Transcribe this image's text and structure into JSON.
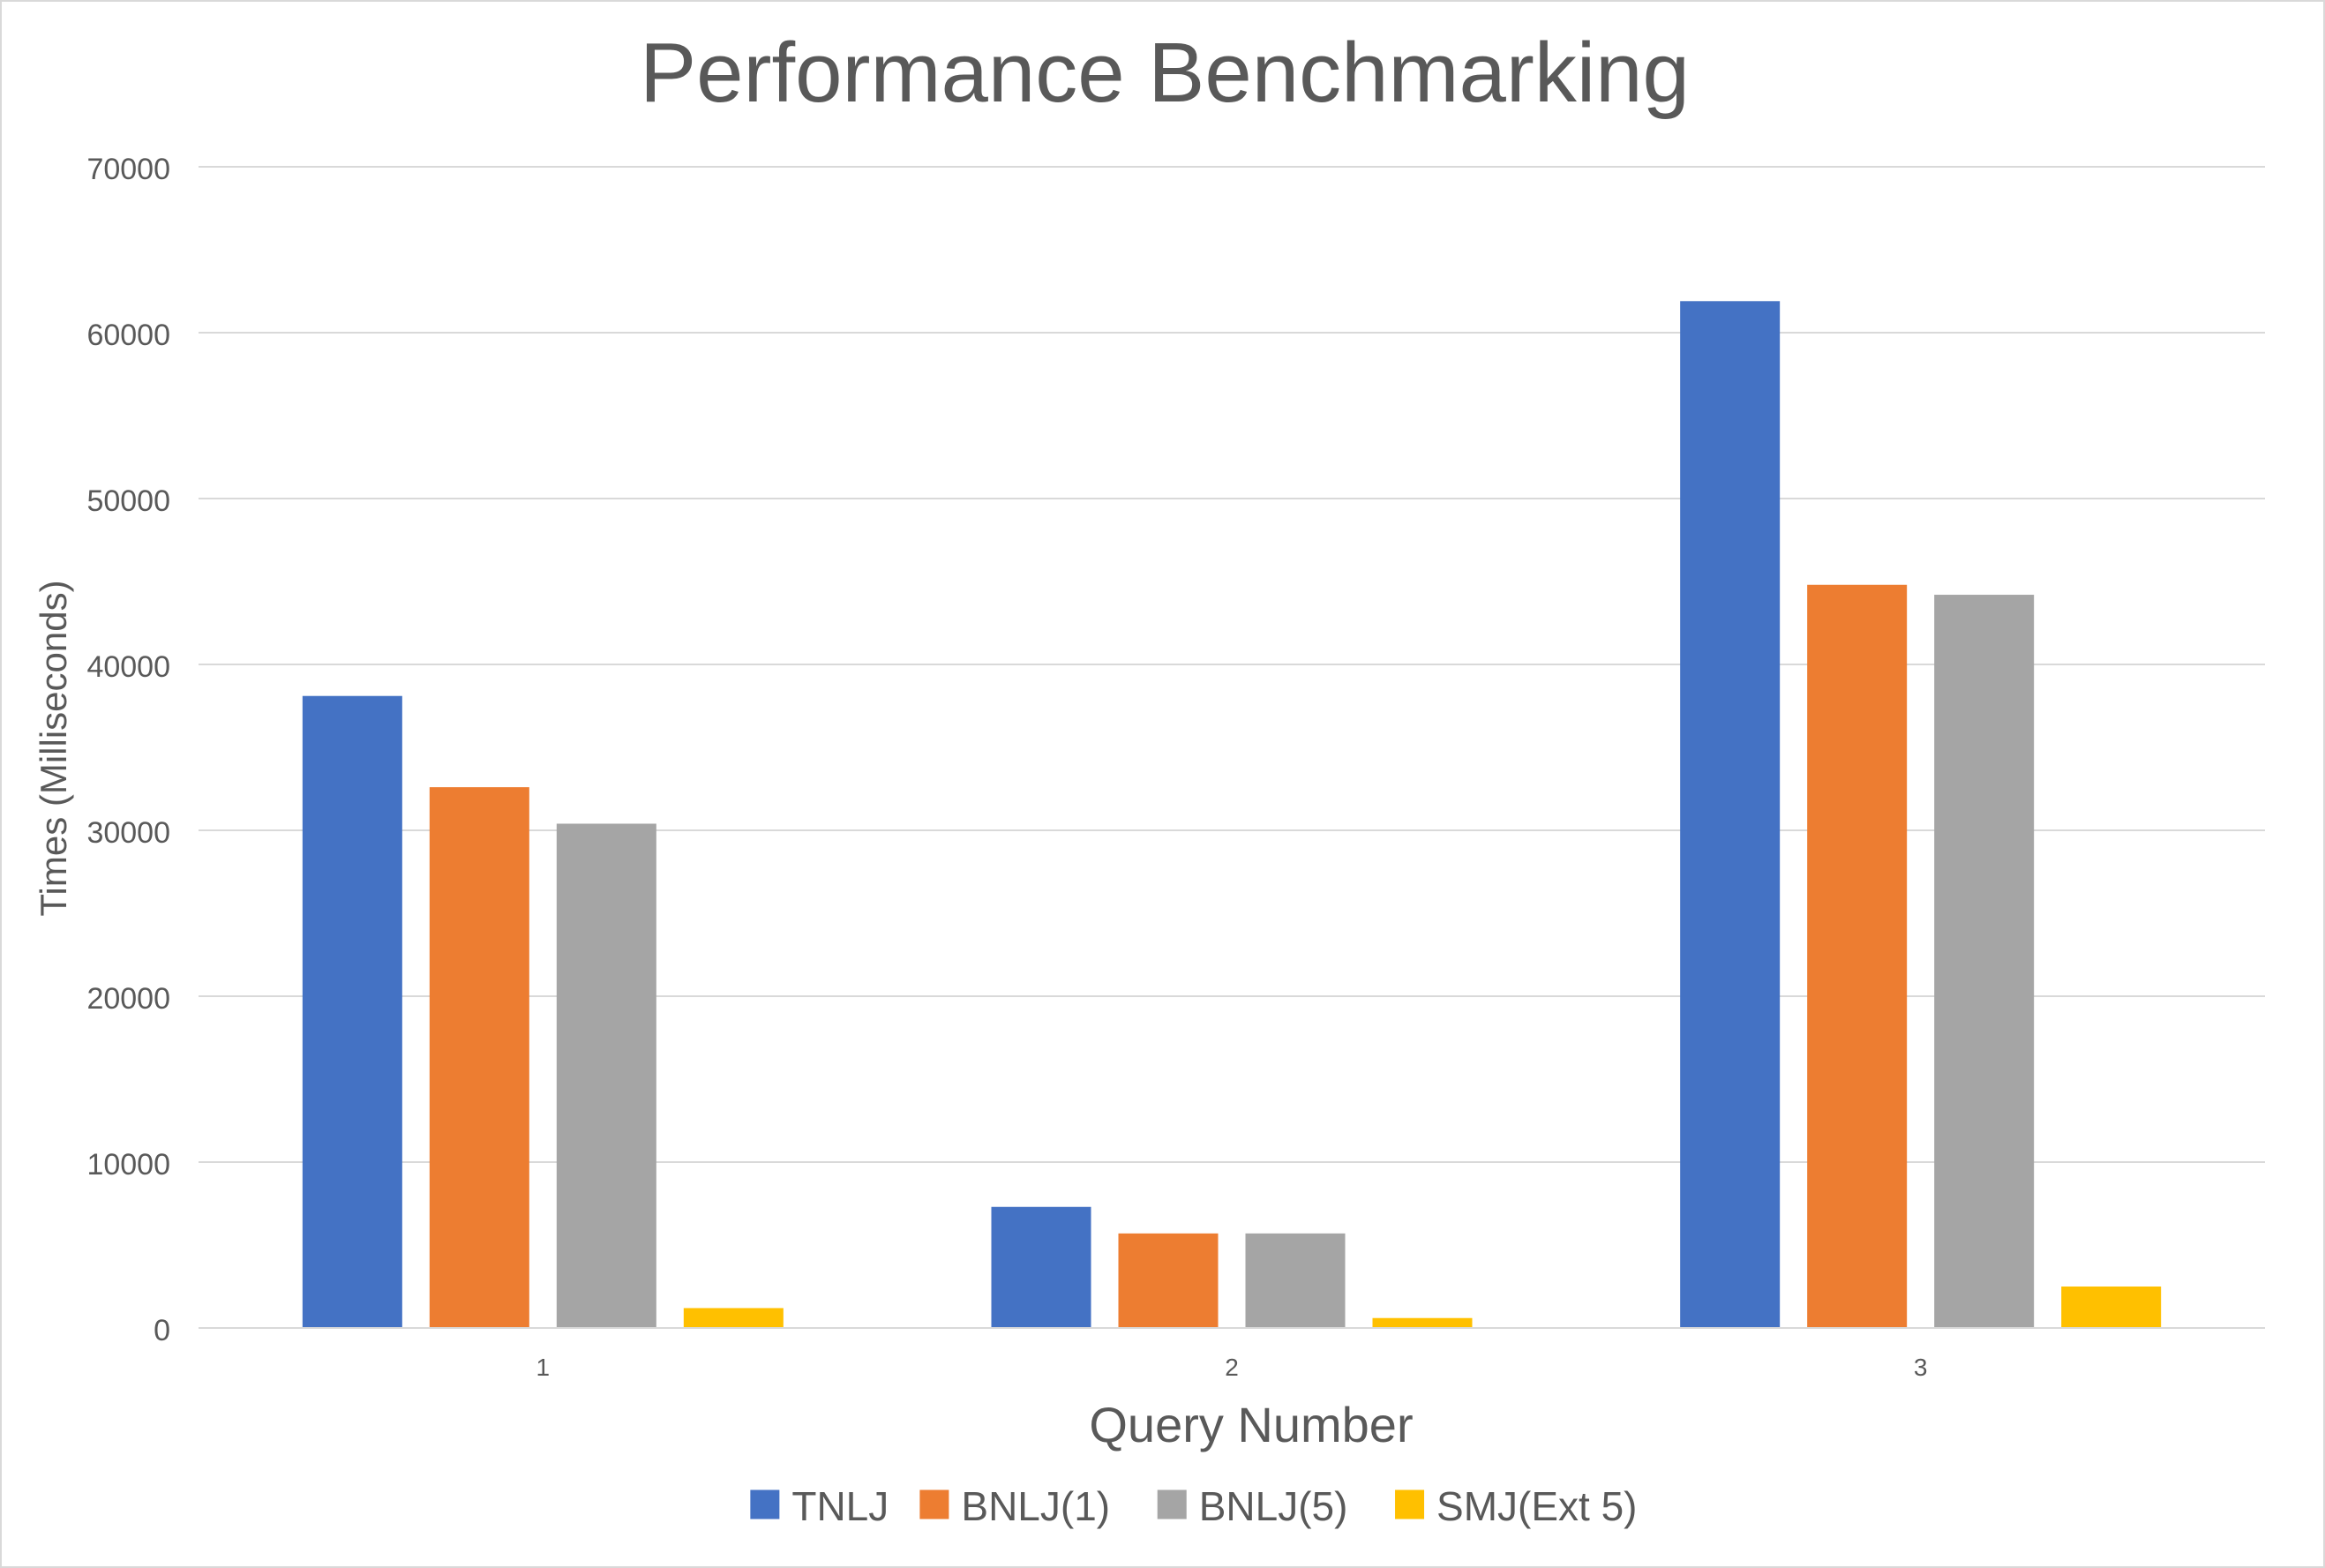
{
  "chart_data": {
    "type": "bar",
    "title": "Performance Benchmarking",
    "xlabel": "Query Number",
    "ylabel": "Times (Milliseconds)",
    "categories": [
      "1",
      "2",
      "3"
    ],
    "ylim": [
      0,
      70000
    ],
    "yticks": [
      "0",
      "10000",
      "20000",
      "30000",
      "40000",
      "50000",
      "60000",
      "70000"
    ],
    "grid": true,
    "legend_position": "bottom",
    "series": [
      {
        "name": "TNLJ",
        "color": "#4472c4",
        "values": [
          38100,
          7300,
          61900
        ]
      },
      {
        "name": "BNLJ(1)",
        "color": "#ed7d31",
        "values": [
          32600,
          5700,
          44800
        ]
      },
      {
        "name": "BNLJ(5)",
        "color": "#a5a5a5",
        "values": [
          30400,
          5700,
          44200
        ]
      },
      {
        "name": "SMJ(Ext 5)",
        "color": "#ffc000",
        "values": [
          1200,
          600,
          2500
        ]
      }
    ]
  }
}
